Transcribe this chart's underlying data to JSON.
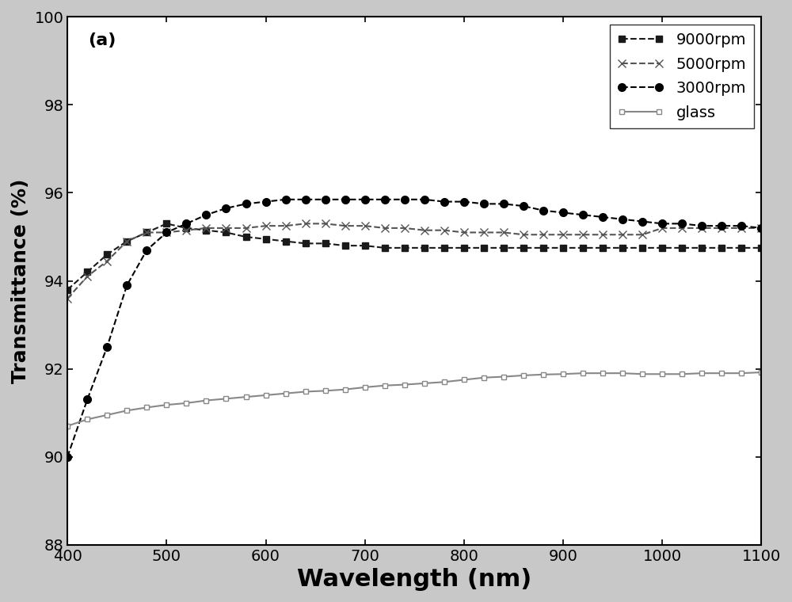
{
  "title": "(a)",
  "xlabel": "Wavelength (nm)",
  "ylabel": "Transmittance (%)",
  "xlim": [
    400,
    1100
  ],
  "ylim": [
    88,
    100
  ],
  "yticks": [
    88,
    90,
    92,
    94,
    96,
    98,
    100
  ],
  "xticks": [
    400,
    500,
    600,
    700,
    800,
    900,
    1000,
    1100
  ],
  "background_color": "#ffffff",
  "figure_facecolor": "#c8c8c8",
  "series": {
    "9000rpm": {
      "color": "#1a1a1a",
      "marker": "s",
      "linestyle": "--",
      "markersize": 6,
      "linewidth": 1.5,
      "wavelengths": [
        400,
        420,
        440,
        460,
        480,
        500,
        520,
        540,
        560,
        580,
        600,
        620,
        640,
        660,
        680,
        700,
        720,
        740,
        760,
        780,
        800,
        820,
        840,
        860,
        880,
        900,
        920,
        940,
        960,
        980,
        1000,
        1020,
        1040,
        1060,
        1080,
        1100
      ],
      "values": [
        93.8,
        94.2,
        94.6,
        94.9,
        95.1,
        95.3,
        95.2,
        95.15,
        95.1,
        95.0,
        94.95,
        94.9,
        94.85,
        94.85,
        94.8,
        94.8,
        94.75,
        94.75,
        94.75,
        94.75,
        94.75,
        94.75,
        94.75,
        94.75,
        94.75,
        94.75,
        94.75,
        94.75,
        94.75,
        94.75,
        94.75,
        94.75,
        94.75,
        94.75,
        94.75,
        94.75
      ]
    },
    "5000rpm": {
      "color": "#555555",
      "marker": "x",
      "linestyle": "--",
      "markersize": 7,
      "linewidth": 1.5,
      "wavelengths": [
        400,
        420,
        440,
        460,
        480,
        500,
        520,
        540,
        560,
        580,
        600,
        620,
        640,
        660,
        680,
        700,
        720,
        740,
        760,
        780,
        800,
        820,
        840,
        860,
        880,
        900,
        920,
        940,
        960,
        980,
        1000,
        1020,
        1040,
        1060,
        1080,
        1100
      ],
      "values": [
        93.6,
        94.1,
        94.45,
        94.9,
        95.1,
        95.1,
        95.15,
        95.2,
        95.2,
        95.2,
        95.25,
        95.25,
        95.3,
        95.3,
        95.25,
        95.25,
        95.2,
        95.2,
        95.15,
        95.15,
        95.1,
        95.1,
        95.1,
        95.05,
        95.05,
        95.05,
        95.05,
        95.05,
        95.05,
        95.05,
        95.2,
        95.2,
        95.2,
        95.2,
        95.2,
        95.2
      ]
    },
    "3000rpm": {
      "color": "#000000",
      "marker": "o",
      "linestyle": "--",
      "markersize": 7,
      "linewidth": 1.5,
      "wavelengths": [
        400,
        420,
        440,
        460,
        480,
        500,
        520,
        540,
        560,
        580,
        600,
        620,
        640,
        660,
        680,
        700,
        720,
        740,
        760,
        780,
        800,
        820,
        840,
        860,
        880,
        900,
        920,
        940,
        960,
        980,
        1000,
        1020,
        1040,
        1060,
        1080,
        1100
      ],
      "values": [
        90.0,
        91.3,
        92.5,
        93.9,
        94.7,
        95.1,
        95.3,
        95.5,
        95.65,
        95.75,
        95.8,
        95.85,
        95.85,
        95.85,
        95.85,
        95.85,
        95.85,
        95.85,
        95.85,
        95.8,
        95.8,
        95.75,
        95.75,
        95.7,
        95.6,
        95.55,
        95.5,
        95.45,
        95.4,
        95.35,
        95.3,
        95.3,
        95.25,
        95.25,
        95.25,
        95.2
      ]
    },
    "glass": {
      "color": "#888888",
      "marker": "s",
      "linestyle": "-",
      "markersize": 5,
      "linewidth": 1.5,
      "markerfacecolor": "white",
      "wavelengths": [
        400,
        420,
        440,
        460,
        480,
        500,
        520,
        540,
        560,
        580,
        600,
        620,
        640,
        660,
        680,
        700,
        720,
        740,
        760,
        780,
        800,
        820,
        840,
        860,
        880,
        900,
        920,
        940,
        960,
        980,
        1000,
        1020,
        1040,
        1060,
        1080,
        1100
      ],
      "values": [
        90.7,
        90.85,
        90.95,
        91.05,
        91.12,
        91.18,
        91.22,
        91.28,
        91.32,
        91.36,
        91.4,
        91.44,
        91.48,
        91.5,
        91.53,
        91.58,
        91.62,
        91.64,
        91.67,
        91.7,
        91.75,
        91.8,
        91.82,
        91.85,
        91.87,
        91.88,
        91.9,
        91.9,
        91.9,
        91.88,
        91.88,
        91.88,
        91.9,
        91.9,
        91.9,
        91.92
      ]
    }
  }
}
